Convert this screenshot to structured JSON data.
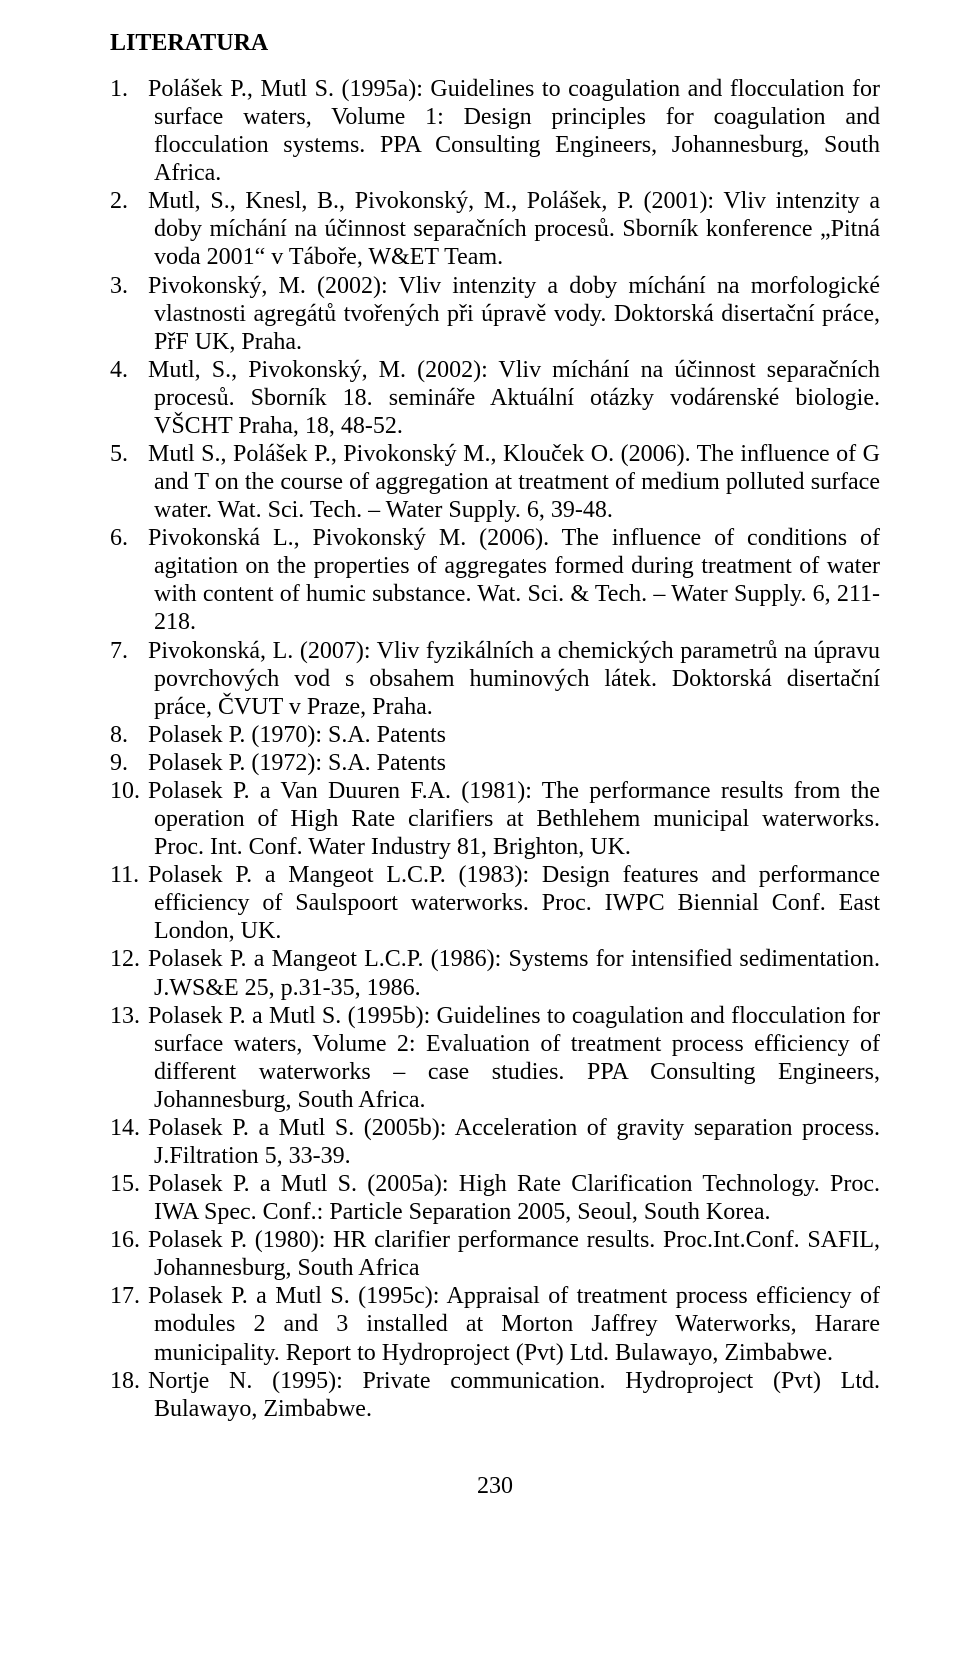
{
  "heading": "LITERATURA",
  "references": [
    {
      "n": "1.",
      "text": "Polášek P., Mutl S. (1995a): Guidelines to coagulation and flocculation for surface waters, Volume 1: Design principles for coagulation and flocculation systems. PPA Consulting Engineers, Johannesburg, South Africa."
    },
    {
      "n": "2.",
      "text": "Mutl, S., Knesl, B., Pivokonský, M., Polášek, P. (2001): Vliv intenzity a doby míchání na účinnost separačních procesů. Sborník konference „Pitná voda 2001“ v Táboře, W&ET Team."
    },
    {
      "n": "3.",
      "text": "Pivokonský, M. (2002): Vliv intenzity a doby míchání na morfologické vlastnosti agregátů tvořených při úpravě vody. Doktorská disertační práce, PřF UK, Praha."
    },
    {
      "n": "4.",
      "text": "Mutl, S., Pivokonský, M. (2002): Vliv míchání na účinnost separačních procesů. Sborník 18. semináře Aktuální otázky vodárenské biologie. VŠCHT Praha, 18, 48-52."
    },
    {
      "n": "5.",
      "text": "Mutl S., Polášek P., Pivokonský M., Klouček O. (2006). The influence of G and T on the course of aggregation at treatment of medium polluted surface water. Wat. Sci. Tech. – Water Supply. 6, 39-48."
    },
    {
      "n": "6.",
      "text": "Pivokonská L., Pivokonský M. (2006). The influence of conditions of agitation on the properties of aggregates formed during treatment of water with content of humic substance. Wat. Sci. & Tech. – Water Supply. 6, 211-218."
    },
    {
      "n": "7.",
      "text": "Pivokonská, L. (2007): Vliv fyzikálních a chemických parametrů na úpravu povrchových vod s obsahem huminových látek. Doktorská disertační práce, ČVUT v Praze, Praha."
    },
    {
      "n": "8.",
      "text": "Polasek P. (1970): S.A. Patents"
    },
    {
      "n": "9.",
      "text": "Polasek P. (1972): S.A. Patents"
    },
    {
      "n": "10.",
      "text": "Polasek P. a Van Duuren F.A. (1981): The performance results from the operation of High Rate clarifiers at Bethlehem municipal waterworks. Proc. Int. Conf. Water Industry 81, Brighton, UK."
    },
    {
      "n": "11.",
      "text": "Polasek P. a Mangeot L.C.P. (1983): Design features and performance efficiency of Saulspoort waterworks. Proc. IWPC Biennial Conf. East London, UK."
    },
    {
      "n": "12.",
      "text": "Polasek P. a Mangeot L.C.P. (1986): Systems for intensified sedimentation. J.WS&E 25, p.31-35, 1986."
    },
    {
      "n": "13.",
      "text": "Polasek P. a Mutl S. (1995b): Guidelines to coagulation and flocculation for surface waters, Volume 2: Evaluation of treatment process efficiency of different waterworks – case studies. PPA Consulting Engineers, Johannesburg, South Africa."
    },
    {
      "n": "14.",
      "text": "Polasek P. a Mutl S. (2005b): Acceleration of gravity separation process. J.Filtration 5, 33-39."
    },
    {
      "n": "15.",
      "text": "Polasek P. a Mutl S. (2005a): High Rate Clarification Technology. Proc. IWA Spec. Conf.: Particle Separation 2005, Seoul, South Korea."
    },
    {
      "n": "16.",
      "text": "Polasek P. (1980): HR clarifier performance results. Proc.Int.Conf. SAFIL, Johannesburg, South Africa"
    },
    {
      "n": "17.",
      "text": "Polasek P. a Mutl S. (1995c): Appraisal of  treatment process efficiency of modules 2 and 3 installed at Morton Jaffrey Waterworks, Harare municipality. Report to Hydroproject (Pvt) Ltd. Bulawayo, Zimbabwe."
    },
    {
      "n": "18.",
      "text": "Nortje N. (1995):  Private communication. Hydroproject (Pvt) Ltd. Bulawayo, Zimbabwe."
    }
  ],
  "pageNumber": "230"
}
